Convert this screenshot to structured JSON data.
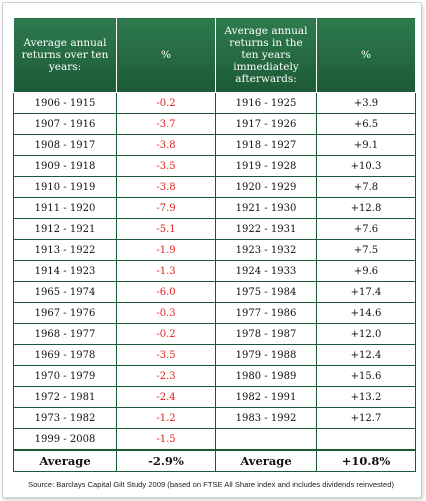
{
  "table": {
    "headers": [
      "Average annual returns over ten years:",
      "%",
      "Average annual returns in the ten years immediately afterwards:",
      "%"
    ],
    "rows": [
      {
        "period": "1906 - 1915",
        "pct": "-0.2",
        "after_period": "1916 - 1925",
        "after_pct": "+3.9"
      },
      {
        "period": "1907 - 1916",
        "pct": "-3.7",
        "after_period": "1917 - 1926",
        "after_pct": "+6.5"
      },
      {
        "period": "1908 - 1917",
        "pct": "-3.8",
        "after_period": "1918 - 1927",
        "after_pct": "+9.1"
      },
      {
        "period": "1909 - 1918",
        "pct": "-3.5",
        "after_period": "1919 - 1928",
        "after_pct": "+10.3"
      },
      {
        "period": "1910 - 1919",
        "pct": "-3.8",
        "after_period": "1920 - 1929",
        "after_pct": "+7.8"
      },
      {
        "period": "1911 - 1920",
        "pct": "-7.9",
        "after_period": "1921 - 1930",
        "after_pct": "+12.8"
      },
      {
        "period": "1912 - 1921",
        "pct": "-5.1",
        "after_period": "1922 - 1931",
        "after_pct": "+7.6"
      },
      {
        "period": "1913 - 1922",
        "pct": "-1.9",
        "after_period": "1923 - 1932",
        "after_pct": "+7.5"
      },
      {
        "period": "1914 - 1923",
        "pct": "-1.3",
        "after_period": "1924 - 1933",
        "after_pct": "+9.6"
      },
      {
        "period": "1965 - 1974",
        "pct": "-6.0",
        "after_period": "1975 - 1984",
        "after_pct": "+17.4"
      },
      {
        "period": "1967 - 1976",
        "pct": "-0.3",
        "after_period": "1977 - 1986",
        "after_pct": "+14.6"
      },
      {
        "period": "1968 - 1977",
        "pct": "-0.2",
        "after_period": "1978 - 1987",
        "after_pct": "+12.0"
      },
      {
        "period": "1969 - 1978",
        "pct": "-3.5",
        "after_period": "1979 - 1988",
        "after_pct": "+12.4"
      },
      {
        "period": "1970 - 1979",
        "pct": "-2.3",
        "after_period": "1980 - 1989",
        "after_pct": "+15.6"
      },
      {
        "period": "1972 - 1981",
        "pct": "-2.4",
        "after_period": "1982 - 1991",
        "after_pct": "+13.2"
      },
      {
        "period": "1973 - 1982",
        "pct": "-1.2",
        "after_period": "1983 - 1992",
        "after_pct": "+12.7"
      },
      {
        "period": "1999 - 2008",
        "pct": "-1.5",
        "after_period": "",
        "after_pct": ""
      }
    ],
    "average": {
      "label": "Average",
      "pct": "-2.9%",
      "after_label": "Average",
      "after_pct": "+10.8%"
    }
  },
  "source": "Source: Barclays Capital Gilt Study 2009 (based on FTSE All Share index and includes dividends reinvested)",
  "colors": {
    "header_green": "#1c5a36",
    "negative_red": "#e0201b"
  }
}
